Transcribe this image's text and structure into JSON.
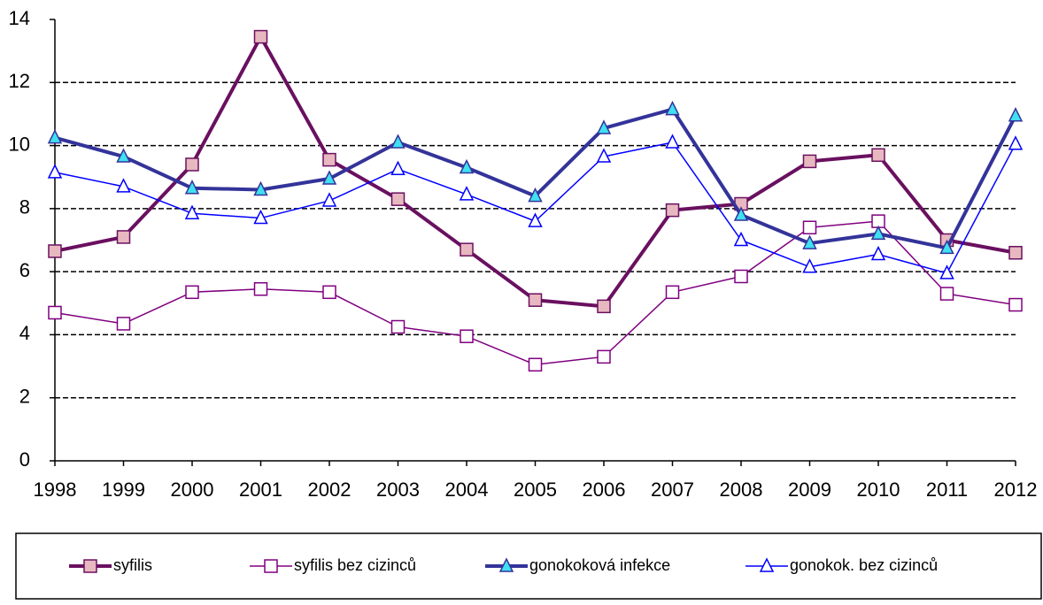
{
  "chart_data": {
    "type": "line",
    "categories": [
      "1998",
      "1999",
      "2000",
      "2001",
      "2002",
      "2003",
      "2004",
      "2005",
      "2006",
      "2007",
      "2008",
      "2009",
      "2010",
      "2011",
      "2012"
    ],
    "series": [
      {
        "name": "syfilis",
        "color": "#6a1060",
        "marker": "square",
        "marker_fill": "#e8b8c0",
        "line_width": 4,
        "values": [
          6.65,
          7.1,
          9.4,
          13.45,
          9.55,
          8.3,
          6.7,
          5.1,
          4.9,
          7.95,
          8.15,
          9.5,
          9.7,
          7.0,
          6.6
        ]
      },
      {
        "name": "syfilis bez cizinců",
        "color": "#800080",
        "marker": "square",
        "marker_fill": "#ffffff",
        "line_width": 1.5,
        "values": [
          4.7,
          4.35,
          5.35,
          5.45,
          5.35,
          4.25,
          3.95,
          3.05,
          3.3,
          5.35,
          5.85,
          7.4,
          7.6,
          5.3,
          4.95
        ]
      },
      {
        "name": "gonokoková infekce",
        "color": "#33339a",
        "marker": "triangle",
        "marker_fill": "#40e0f0",
        "line_width": 4,
        "values": [
          10.25,
          9.65,
          8.65,
          8.6,
          8.95,
          10.1,
          9.3,
          8.4,
          10.55,
          11.15,
          7.8,
          6.9,
          7.2,
          6.75,
          10.95
        ]
      },
      {
        "name": "gonokok. bez cizinců",
        "color": "#0000ff",
        "marker": "triangle",
        "marker_fill": "#ffffff",
        "line_width": 1.5,
        "values": [
          9.15,
          8.7,
          7.85,
          7.7,
          8.25,
          9.25,
          8.45,
          7.6,
          9.65,
          10.1,
          7.0,
          6.15,
          6.55,
          5.95,
          10.05
        ]
      }
    ],
    "ylim": [
      0,
      14
    ],
    "yticks": [
      0,
      2,
      4,
      6,
      8,
      10,
      12,
      14
    ],
    "grid": true,
    "legend": "bottom"
  }
}
